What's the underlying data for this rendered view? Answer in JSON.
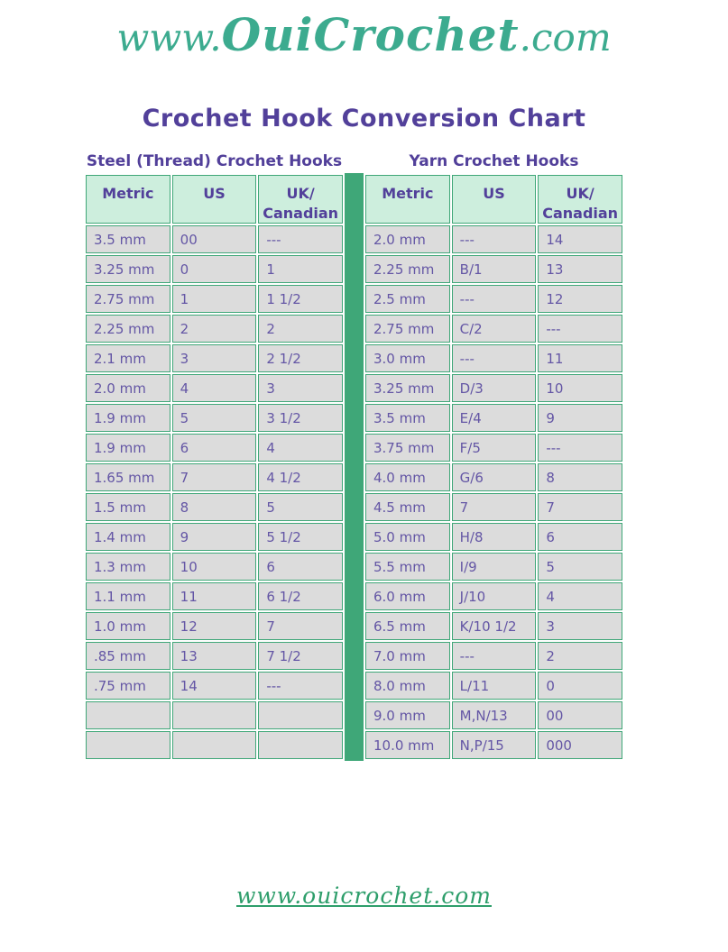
{
  "logo": {
    "prefix": "www.",
    "main": "OuiCrochet",
    "suffix": ".com"
  },
  "title": "Crochet Hook Conversion Chart",
  "tables": [
    {
      "section_title": "Steel (Thread) Crochet Hooks",
      "headers": [
        "Metric",
        "US",
        "UK/\nCanadian"
      ],
      "rows": [
        [
          "3.5 mm",
          "00",
          "---"
        ],
        [
          "3.25 mm",
          "0",
          "1"
        ],
        [
          "2.75 mm",
          "1",
          "1 1/2"
        ],
        [
          "2.25 mm",
          "2",
          "2"
        ],
        [
          "2.1 mm",
          "3",
          "2 1/2"
        ],
        [
          "2.0 mm",
          "4",
          "3"
        ],
        [
          "1.9 mm",
          "5",
          "3 1/2"
        ],
        [
          "1.9 mm",
          "6",
          "4"
        ],
        [
          "1.65 mm",
          "7",
          "4 1/2"
        ],
        [
          "1.5 mm",
          "8",
          "5"
        ],
        [
          "1.4 mm",
          "9",
          "5 1/2"
        ],
        [
          "1.3 mm",
          "10",
          "6"
        ],
        [
          "1.1 mm",
          "11",
          "6 1/2"
        ],
        [
          "1.0 mm",
          "12",
          "7"
        ],
        [
          ".85 mm",
          "13",
          "7 1/2"
        ],
        [
          ".75 mm",
          "14",
          "---"
        ],
        [
          "",
          "",
          ""
        ],
        [
          "",
          "",
          ""
        ]
      ]
    },
    {
      "section_title": "Yarn Crochet Hooks",
      "headers": [
        "Metric",
        "US",
        "UK/\nCanadian"
      ],
      "rows": [
        [
          "2.0 mm",
          "---",
          "14"
        ],
        [
          "2.25 mm",
          "B/1",
          "13"
        ],
        [
          "2.5 mm",
          "---",
          "12"
        ],
        [
          "2.75 mm",
          "C/2",
          "---"
        ],
        [
          "3.0 mm",
          "---",
          "11"
        ],
        [
          "3.25 mm",
          "D/3",
          "10"
        ],
        [
          "3.5 mm",
          "E/4",
          "9"
        ],
        [
          "3.75 mm",
          "F/5",
          "---"
        ],
        [
          "4.0 mm",
          "G/6",
          "8"
        ],
        [
          "4.5 mm",
          "7",
          "7"
        ],
        [
          "5.0 mm",
          "H/8",
          "6"
        ],
        [
          "5.5 mm",
          "I/9",
          "5"
        ],
        [
          "6.0 mm",
          "J/10",
          "4"
        ],
        [
          "6.5 mm",
          "K/10 1/2",
          "3"
        ],
        [
          "7.0 mm",
          "---",
          "2"
        ],
        [
          "8.0 mm",
          "L/11",
          "0"
        ],
        [
          "9.0 mm",
          "M,N/13",
          "00"
        ],
        [
          "10.0 mm",
          "N,P/15",
          "000"
        ]
      ]
    }
  ],
  "footer": {
    "link_text": "www.ouicrochet.com"
  },
  "colors": {
    "green": "#3fa778",
    "mint_header_bg": "#cdeedd",
    "row_gray_bg": "#dcdcdc",
    "cell_text_purple": "#6456a5",
    "heading_purple": "#52409a",
    "logo_teal": "#3cab8f",
    "footer_green": "#2e9e6b"
  }
}
